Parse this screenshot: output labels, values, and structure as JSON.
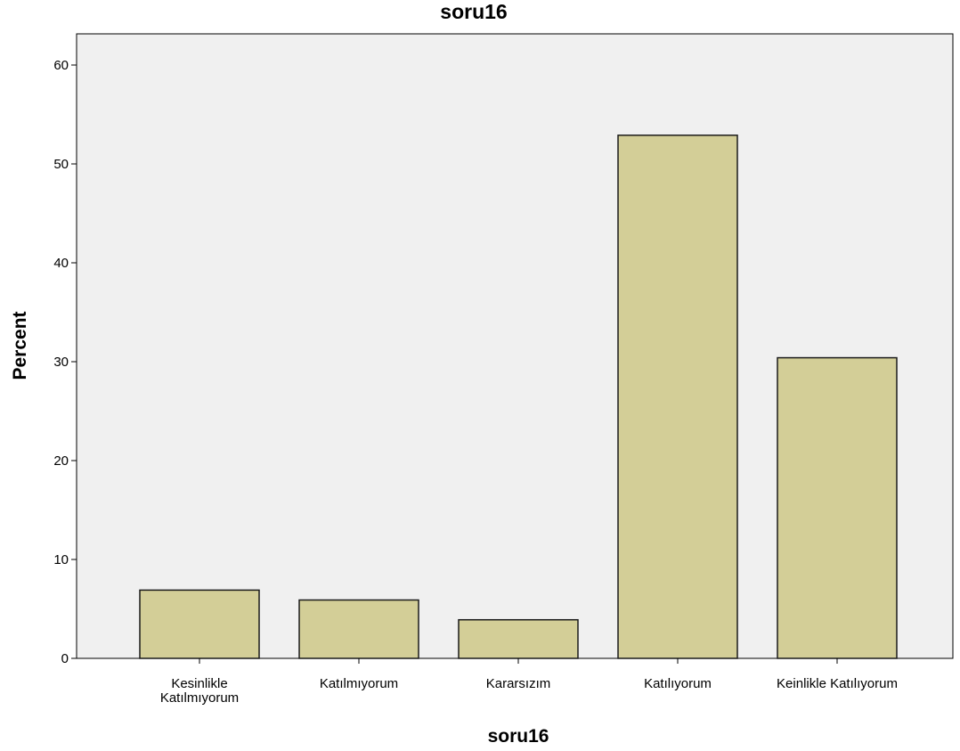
{
  "chart_data": {
    "type": "bar",
    "title": "soru16",
    "xlabel": "soru16",
    "ylabel": "Percent",
    "ylim": [
      0,
      63
    ],
    "yticks": [
      0,
      10,
      20,
      30,
      40,
      50,
      60
    ],
    "categories": [
      [
        "Kesinlikle",
        "Katılmıyorum"
      ],
      [
        "Katılmıyorum"
      ],
      [
        "Kararsızım"
      ],
      [
        "Katılıyorum"
      ],
      [
        "Keinlikle Katılıyorum"
      ]
    ],
    "values": [
      6.9,
      5.9,
      3.9,
      52.9,
      30.4
    ],
    "grid": false,
    "legend": "none",
    "colors": {
      "bar_fill": "#d3ce97",
      "bar_stroke": "#1a1a1a",
      "plot_background": "#f0f0f0",
      "axis": "#000000"
    }
  }
}
